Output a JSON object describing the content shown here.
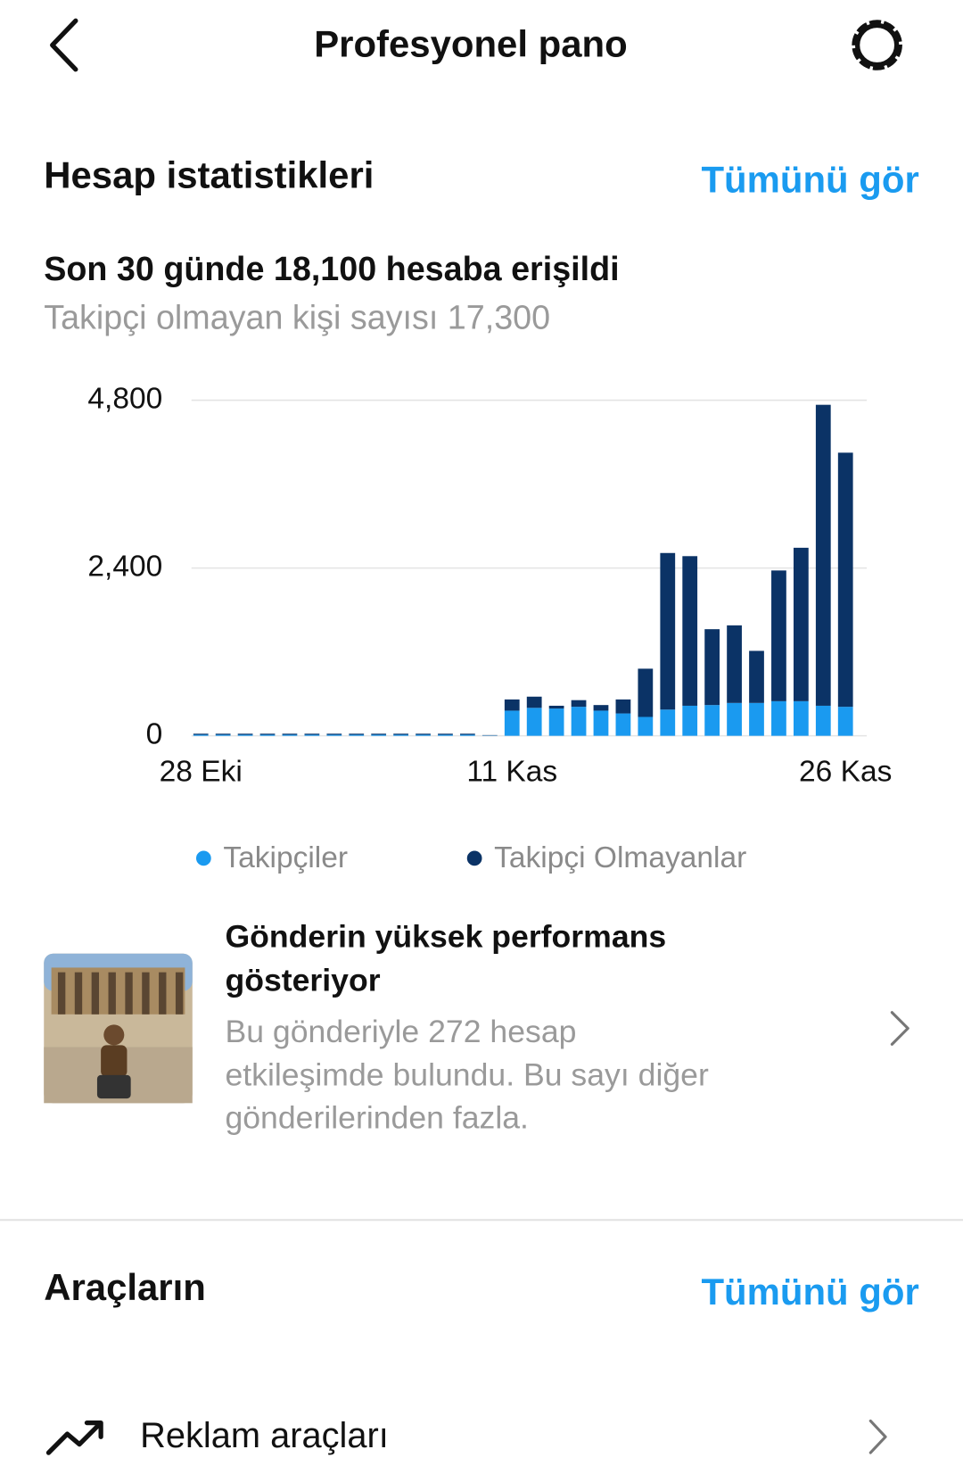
{
  "header": {
    "title": "Profesyonel pano"
  },
  "account_stats": {
    "title": "Hesap istatistikleri",
    "link": "Tümünü gör",
    "reach": "Son 30 günde 18,100 hesaba erişildi",
    "non_followers": "Takipçi olmayan kişi sayısı 17,300"
  },
  "chart_data": {
    "type": "stacked_bar",
    "categories": [
      "28 Eki",
      null,
      null,
      null,
      null,
      null,
      null,
      null,
      null,
      null,
      null,
      null,
      null,
      null,
      "11 Kas",
      null,
      null,
      null,
      null,
      null,
      null,
      null,
      null,
      null,
      null,
      null,
      null,
      null,
      null,
      "26 Kas"
    ],
    "series": [
      {
        "name": "Takipçiler",
        "color": "#1a9af0",
        "values": [
          15,
          15,
          15,
          15,
          15,
          15,
          15,
          15,
          15,
          15,
          15,
          15,
          15,
          5,
          360,
          400,
          390,
          415,
          360,
          320,
          270,
          375,
          430,
          440,
          470,
          470,
          495,
          495,
          430,
          415
        ]
      },
      {
        "name": "Takipçi Olmayanlar",
        "color": "#0b3366",
        "values": [
          15,
          15,
          15,
          15,
          15,
          15,
          15,
          15,
          15,
          15,
          15,
          15,
          15,
          5,
          160,
          160,
          40,
          95,
          80,
          200,
          690,
          2240,
          2140,
          1085,
          1110,
          745,
          1870,
          2195,
          4305,
          3635
        ]
      }
    ],
    "ylim": [
      0,
      4800
    ],
    "yticks": [
      0,
      {
        "value": 2400,
        "label": "2,400"
      },
      {
        "value": 4800,
        "label": "4,800"
      }
    ],
    "grid": true
  },
  "post_insight": {
    "title_lines": [
      "Gönderin yüksek performans",
      "gösteriyor"
    ],
    "text_lines": [
      "Bu gönderiyle 272 hesap",
      "etkileşimde bulundu. Bu sayı diğer",
      "gönderilerinden fazla."
    ]
  },
  "tools": {
    "title": "Araçların",
    "link": "Tümünü gör",
    "items": [
      "Reklam araçları"
    ]
  }
}
